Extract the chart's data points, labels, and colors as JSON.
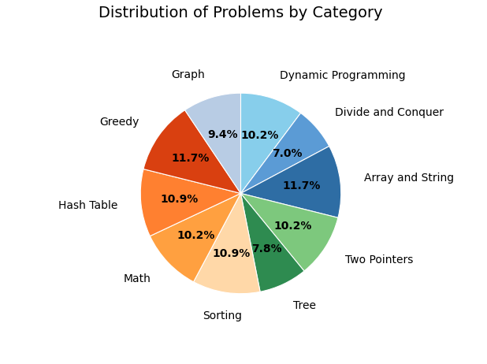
{
  "title": "Distribution of Problems by Category",
  "categories": [
    "Dynamic Programming",
    "Divide and Conquer",
    "Array and String",
    "Two Pointers",
    "Tree",
    "Sorting",
    "Math",
    "Hash Table",
    "Greedy",
    "Graph"
  ],
  "values": [
    10.2,
    7.0,
    11.7,
    10.2,
    7.8,
    10.9,
    10.2,
    10.9,
    11.7,
    9.4
  ],
  "colors": [
    "#87CEEB",
    "#5B9BD5",
    "#2E6DA4",
    "#7DC87D",
    "#2E8B50",
    "#FFD8A8",
    "#FFA040",
    "#FF8030",
    "#D94010",
    "#B8CCE4"
  ],
  "title_fontsize": 14,
  "label_fontsize": 10,
  "pct_fontsize": 10,
  "startangle": 90
}
